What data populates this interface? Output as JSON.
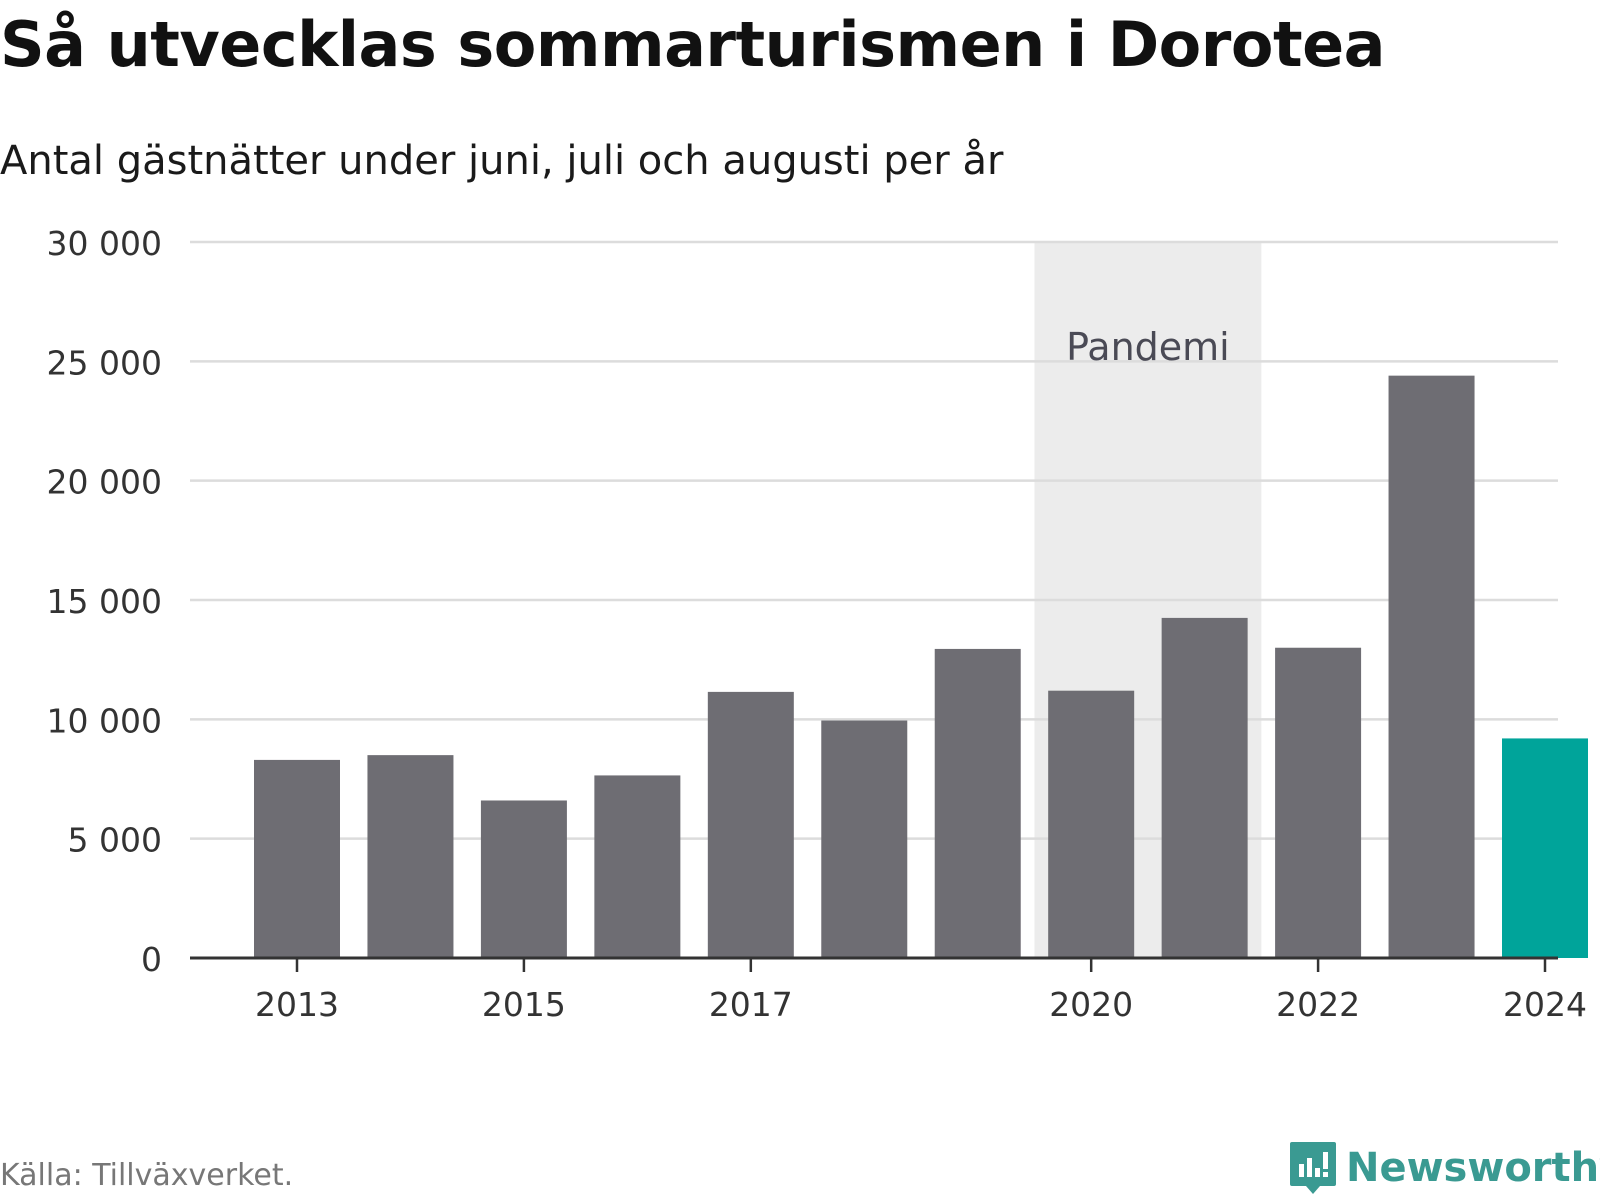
{
  "title": "Så utvecklas sommarturismen i Dorotea",
  "subtitle": "Antal gästnätter under juni, juli och augusti per år",
  "source": "Källa: Tillväxverket.",
  "brand": "Newsworthy",
  "colors": {
    "bar": "#6e6d73",
    "highlight": "#00a49a",
    "pandemic": "#ececec",
    "grid": "#dcdcdc",
    "axis": "#333333",
    "brand": "#3a9a92"
  },
  "chart_data": {
    "type": "bar",
    "categories": [
      "2013",
      "2014",
      "2015",
      "2016",
      "2017",
      "2018",
      "2019",
      "2020",
      "2021",
      "2022",
      "2023",
      "2024"
    ],
    "values": [
      8300,
      8500,
      6600,
      7650,
      11150,
      9950,
      12950,
      11200,
      14250,
      13000,
      24400,
      9200
    ],
    "highlight_category": "2024",
    "ylim": [
      0,
      30000
    ],
    "yticks": [
      0,
      5000,
      10000,
      15000,
      20000,
      25000,
      30000
    ],
    "ytick_labels": [
      "0",
      "5 000",
      "10 000",
      "15 000",
      "20 000",
      "25 000",
      "30 000"
    ],
    "xtick_labels": [
      "2013",
      "2015",
      "2017",
      "2020",
      "2022",
      "2024"
    ],
    "annotation": {
      "label": "Pandemi",
      "from": "2020",
      "to": "2021"
    },
    "grid": true,
    "xlabel": "",
    "ylabel": ""
  }
}
